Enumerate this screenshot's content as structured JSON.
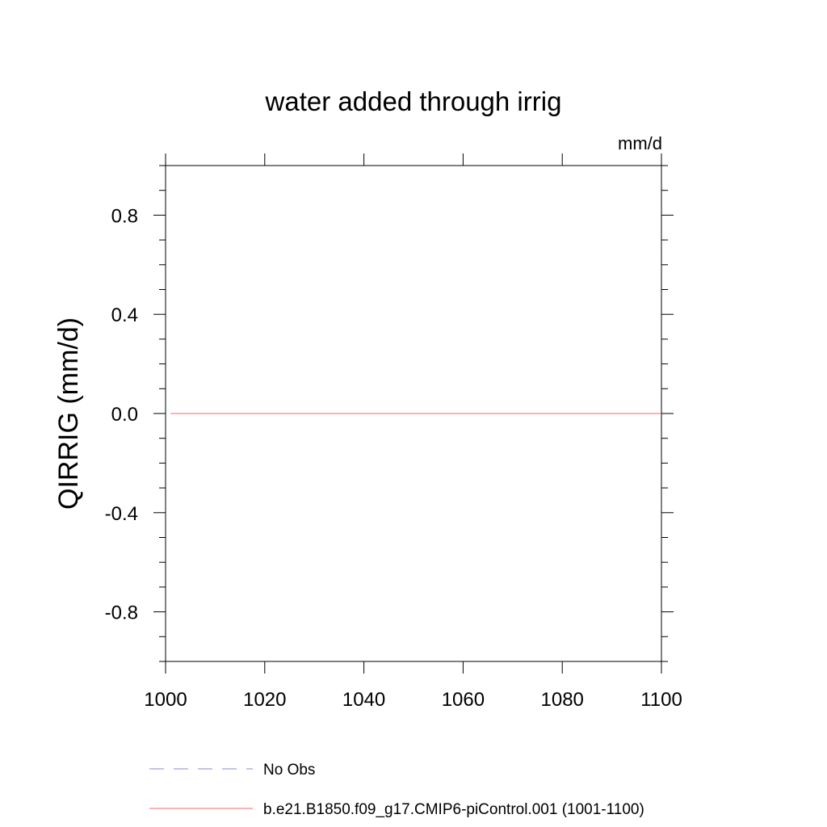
{
  "chart_data": {
    "type": "line",
    "title": "water added through irrig",
    "units": "mm/d",
    "ylabel": "QIRRIG  (mm/d)",
    "xlabel": "",
    "xlim": [
      1000,
      1100
    ],
    "ylim": [
      -1.0,
      1.0
    ],
    "x_ticks": [
      1000,
      1020,
      1040,
      1060,
      1080,
      1100
    ],
    "x_tick_labels": [
      "1000",
      "1020",
      "1040",
      "1060",
      "1080",
      "1100"
    ],
    "y_ticks": [
      -0.8,
      -0.4,
      0.0,
      0.4,
      0.8
    ],
    "y_tick_labels": [
      "-0.8",
      "-0.4",
      "0.0",
      "0.4",
      "0.8"
    ],
    "grid": false,
    "legend_position": "bottom",
    "series": [
      {
        "name": "No Obs",
        "color": "#8888cc",
        "style": "dashed",
        "x": [],
        "y": []
      },
      {
        "name": "b.e21.B1850.f09_g17.CMIP6-piControl.001 (1001-1100)",
        "color": "#ff6666",
        "style": "solid",
        "x": [
          1001,
          1100
        ],
        "y": [
          0.0,
          0.0
        ]
      }
    ]
  }
}
